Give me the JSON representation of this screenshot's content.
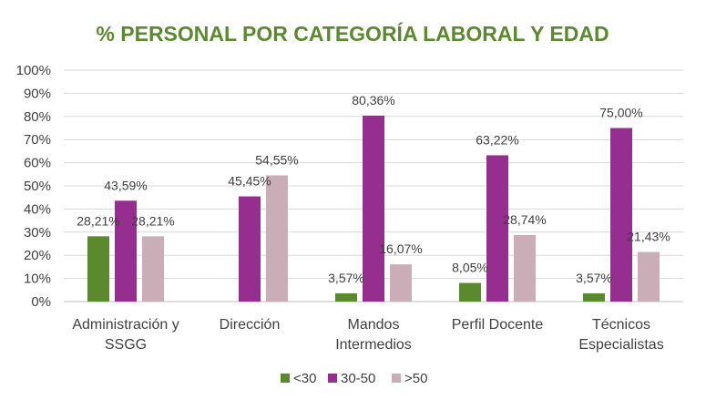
{
  "chart_data": {
    "type": "bar",
    "title": "% PERSONAL POR CATEGORÍA LABORAL Y EDAD",
    "title_color": "#5b8a2e",
    "categories": [
      [
        "Administración y",
        "SSGG"
      ],
      [
        "Dirección"
      ],
      [
        "Mandos",
        "Intermedios"
      ],
      [
        "Perfil Docente"
      ],
      [
        "Técnicos",
        "Especialistas"
      ]
    ],
    "series": [
      {
        "name": "<30",
        "color": "#5b8a2e",
        "values": [
          28.21,
          null,
          3.57,
          8.05,
          3.57
        ],
        "labels": [
          "28,21%",
          "",
          "3,57%",
          "8,05%",
          "3,57%"
        ]
      },
      {
        "name": "30-50",
        "color": "#952e8f",
        "values": [
          43.59,
          45.45,
          80.36,
          63.22,
          75.0
        ],
        "labels": [
          "43,59%",
          "45,45%",
          "80,36%",
          "63,22%",
          "75,00%"
        ]
      },
      {
        "name": ">50",
        "color": "#c9aeb8",
        "values": [
          28.21,
          54.55,
          16.07,
          28.74,
          21.43
        ],
        "labels": [
          "28,21%",
          "54,55%",
          "16,07%",
          "28,74%",
          "21,43%"
        ]
      }
    ],
    "ylim": [
      0,
      100
    ],
    "yticks": [
      "0%",
      "10%",
      "20%",
      "30%",
      "40%",
      "50%",
      "60%",
      "70%",
      "80%",
      "90%",
      "100%"
    ],
    "grid": true,
    "legend_position": "bottom"
  }
}
